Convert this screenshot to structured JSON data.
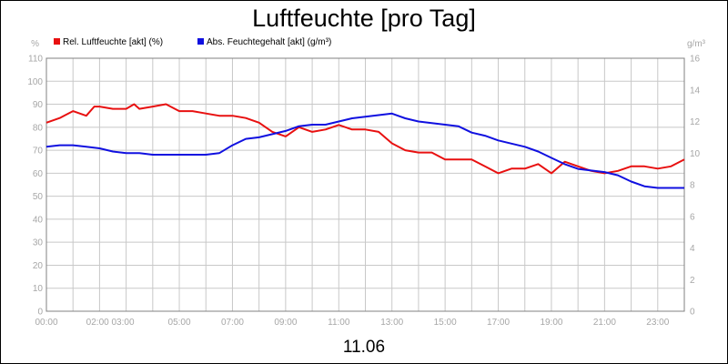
{
  "chart_data": {
    "type": "line",
    "title": "Luftfeuchte [pro Tag]",
    "date_label": "11.06",
    "left_unit": "%",
    "right_unit": "g/m³",
    "y_left": {
      "min": 0,
      "max": 110,
      "ticks": [
        "0",
        "10",
        "20",
        "30",
        "40",
        "50",
        "60",
        "70",
        "80",
        "90",
        "100",
        "110"
      ]
    },
    "y_right": {
      "min": 0,
      "max": 16,
      "ticks": [
        "0",
        "2",
        "4",
        "6",
        "8",
        "10",
        "12",
        "14",
        "16"
      ]
    },
    "x": {
      "min": 0,
      "max": 24,
      "ticks": [
        {
          "value": 0,
          "label": "00:00"
        },
        {
          "value": 2.4,
          "label": "02:00 03:00"
        },
        {
          "value": 5,
          "label": "05:00"
        },
        {
          "value": 7,
          "label": "07:00"
        },
        {
          "value": 9,
          "label": "09:00"
        },
        {
          "value": 11,
          "label": "11:00"
        },
        {
          "value": 13,
          "label": "13:00"
        },
        {
          "value": 15,
          "label": "15:00"
        },
        {
          "value": 17,
          "label": "17:00"
        },
        {
          "value": 19,
          "label": "19:00"
        },
        {
          "value": 21,
          "label": "21:00"
        },
        {
          "value": 23,
          "label": "23:00"
        }
      ]
    },
    "grid": true,
    "legend_position": "top-left",
    "series": [
      {
        "name": "Rel. Luftfeuchte [akt] (%)",
        "axis": "left",
        "color": "#e81010",
        "x": [
          0,
          0.5,
          1,
          1.5,
          1.8,
          2,
          2.5,
          3,
          3.3,
          3.5,
          4,
          4.5,
          5,
          5.5,
          6,
          6.5,
          7,
          7.5,
          8,
          8.5,
          9,
          9.5,
          10,
          10.5,
          11,
          11.5,
          12,
          12.5,
          13,
          13.5,
          14,
          14.5,
          15,
          15.5,
          16,
          16.5,
          17,
          17.5,
          18,
          18.5,
          19,
          19.5,
          20,
          20.5,
          21,
          21.5,
          22,
          22.5,
          23,
          23.5,
          24
        ],
        "values": [
          82,
          84,
          87,
          85,
          89,
          89,
          88,
          88,
          90,
          88,
          89,
          90,
          87,
          87,
          86,
          85,
          85,
          84,
          82,
          78,
          76,
          80,
          78,
          79,
          81,
          79,
          79,
          78,
          73,
          70,
          69,
          69,
          66,
          66,
          66,
          63,
          60,
          62,
          62,
          64,
          60,
          65,
          63,
          61,
          60,
          61,
          63,
          63,
          62,
          63,
          66
        ]
      },
      {
        "name": "Abs. Feuchtegehalt [akt] (g/m³)",
        "axis": "right",
        "color": "#1010e0",
        "x": [
          0,
          0.5,
          1,
          1.5,
          2,
          2.5,
          3,
          3.5,
          4,
          4.5,
          5,
          5.5,
          6,
          6.5,
          7,
          7.5,
          8,
          8.5,
          9,
          9.5,
          10,
          10.5,
          11,
          11.5,
          12,
          12.5,
          13,
          13.5,
          14,
          14.5,
          15,
          15.5,
          16,
          16.5,
          17,
          17.5,
          18,
          18.5,
          19,
          19.5,
          20,
          20.5,
          21,
          21.5,
          22,
          22.5,
          23,
          23.5,
          24
        ],
        "values": [
          10.4,
          10.5,
          10.5,
          10.4,
          10.3,
          10.1,
          10.0,
          10.0,
          9.9,
          9.9,
          9.9,
          9.9,
          9.9,
          10.0,
          10.5,
          10.9,
          11.0,
          11.2,
          11.4,
          11.7,
          11.8,
          11.8,
          12.0,
          12.2,
          12.3,
          12.4,
          12.5,
          12.2,
          12.0,
          11.9,
          11.8,
          11.7,
          11.3,
          11.1,
          10.8,
          10.6,
          10.4,
          10.1,
          9.7,
          9.3,
          9.0,
          8.9,
          8.8,
          8.6,
          8.2,
          7.9,
          7.8,
          7.8,
          7.8
        ]
      }
    ]
  }
}
